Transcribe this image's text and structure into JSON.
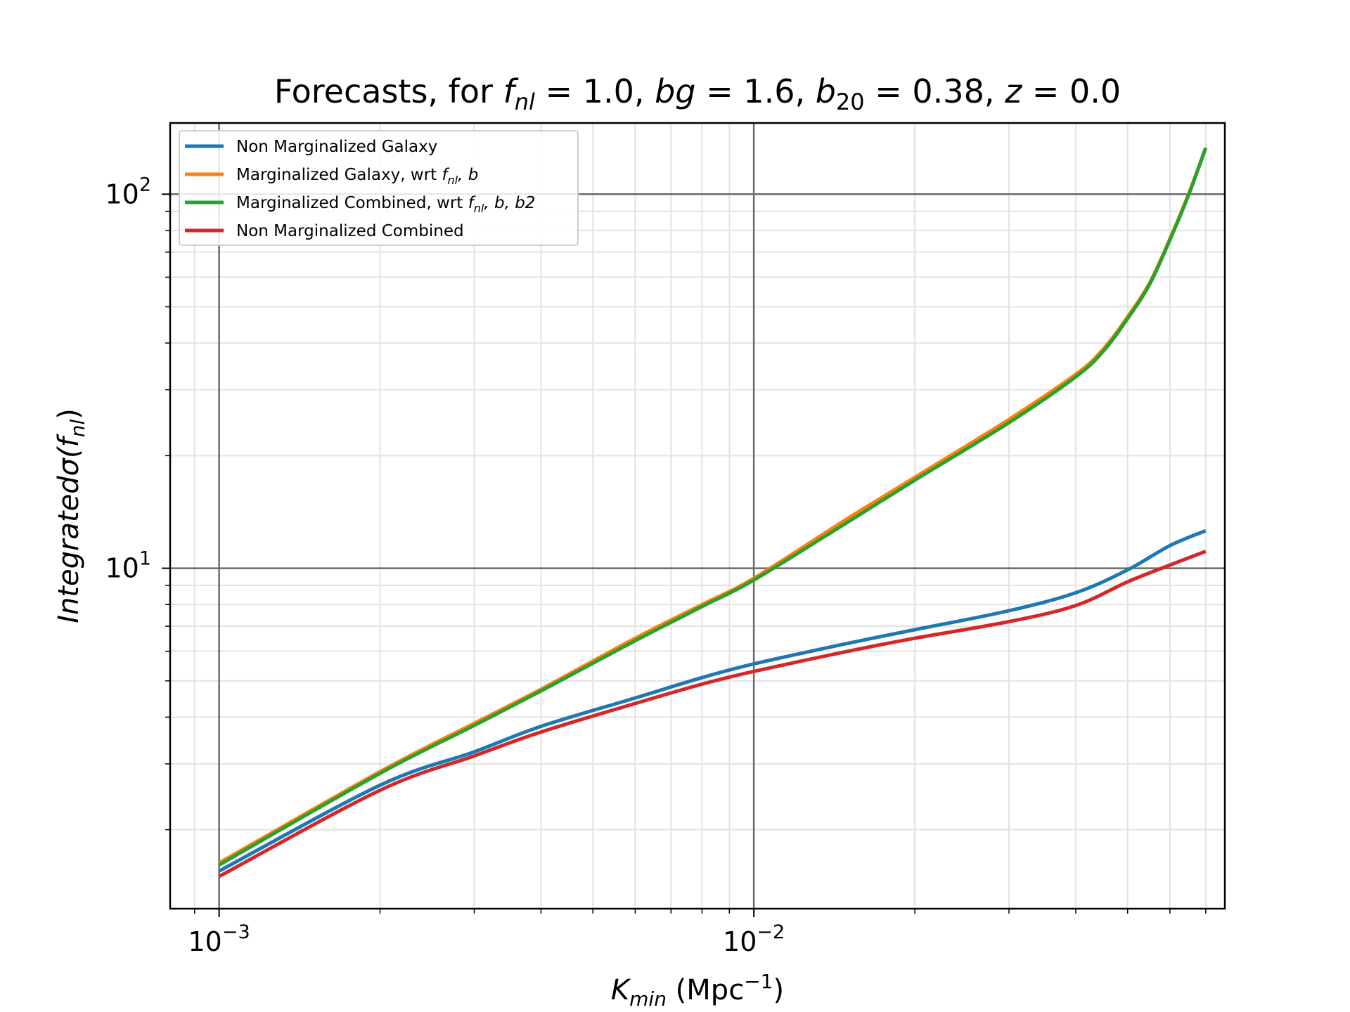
{
  "chart_data": {
    "type": "line",
    "title_parts": {
      "prefix": "Forecasts, for ",
      "fnl_sym": "f",
      "fnl_sub": "nl",
      "fnl_val": " = 1.0, ",
      "bg_sym": "bg",
      "bg_val": " = 1.6, ",
      "b20_sym": "b",
      "b20_sub": "20",
      "b20_val": " = 0.38, ",
      "z_sym": "z",
      "z_val": " = 0.0"
    },
    "xlabel_parts": {
      "sym": "K",
      "sub": "min",
      "unit_pre": " (Mpc",
      "unit_sup": "−1",
      "unit_post": ")"
    },
    "ylabel_parts": {
      "pre": "Integrated",
      "sigma": "σ(",
      "sym": "f",
      "sub": "nl",
      "post": ")"
    },
    "x_scale": "log",
    "y_scale": "log",
    "xlim": [
      0.00081,
      0.076
    ],
    "ylim": [
      1.23,
      155
    ],
    "x_ticks": [
      {
        "value": 0.001,
        "base": "10",
        "exp": "−3"
      },
      {
        "value": 0.01,
        "base": "10",
        "exp": "−2"
      }
    ],
    "y_ticks": [
      {
        "value": 10,
        "base": "10",
        "exp": "1"
      },
      {
        "value": 100,
        "base": "10",
        "exp": "2"
      }
    ],
    "grid": true,
    "legend_position": "upper-left",
    "legend": [
      {
        "color": "#1f77b4",
        "text": "Non Marginalized Galaxy",
        "sym": "",
        "sym_sub": "",
        "tail": ""
      },
      {
        "color": "#ff7f0e",
        "text": "Marginalized Galaxy, wrt ",
        "sym": "f",
        "sym_sub": "nl",
        "tail": ",  b"
      },
      {
        "color": "#2ca02c",
        "text": "Marginalized Combined, wrt ",
        "sym": "f",
        "sym_sub": "nl",
        "tail": ",  b,  b2"
      },
      {
        "color": "#d62728",
        "text": "Non Marginalized Combined",
        "sym": "",
        "sym_sub": "",
        "tail": ""
      }
    ],
    "series": [
      {
        "name": "Non Marginalized Galaxy",
        "color": "#1f77b4",
        "x": [
          0.001,
          0.002,
          0.003,
          0.004,
          0.006,
          0.008,
          0.01,
          0.015,
          0.02,
          0.03,
          0.04,
          0.05,
          0.06,
          0.07
        ],
        "y": [
          1.55,
          2.63,
          3.23,
          3.78,
          4.5,
          5.1,
          5.55,
          6.3,
          6.85,
          7.7,
          8.6,
          9.9,
          11.5,
          12.6
        ]
      },
      {
        "name": "Marginalized Galaxy, wrt fnl, b",
        "color": "#ff7f0e",
        "x": [
          0.001,
          0.002,
          0.003,
          0.004,
          0.006,
          0.008,
          0.01,
          0.015,
          0.02,
          0.03,
          0.04,
          0.045,
          0.05,
          0.055,
          0.06,
          0.065,
          0.07
        ],
        "y": [
          1.63,
          2.86,
          3.85,
          4.75,
          6.5,
          8.0,
          9.4,
          13.6,
          17.5,
          25.0,
          33.0,
          38.5,
          47.0,
          58.0,
          76.0,
          100.0,
          133.0
        ]
      },
      {
        "name": "Marginalized Combined, wrt fnl, b, b2",
        "color": "#2ca02c",
        "x": [
          0.001,
          0.002,
          0.003,
          0.004,
          0.006,
          0.008,
          0.01,
          0.015,
          0.02,
          0.03,
          0.04,
          0.045,
          0.05,
          0.055,
          0.06,
          0.065,
          0.07
        ],
        "y": [
          1.61,
          2.83,
          3.8,
          4.7,
          6.4,
          7.9,
          9.3,
          13.3,
          17.2,
          24.5,
          32.5,
          38.0,
          46.5,
          57.5,
          75.5,
          99.5,
          133.0
        ]
      },
      {
        "name": "Non Marginalized Combined",
        "color": "#d62728",
        "x": [
          0.001,
          0.002,
          0.003,
          0.004,
          0.006,
          0.008,
          0.01,
          0.015,
          0.02,
          0.03,
          0.04,
          0.05,
          0.06,
          0.07
        ],
        "y": [
          1.5,
          2.55,
          3.15,
          3.65,
          4.35,
          4.9,
          5.3,
          6.0,
          6.5,
          7.2,
          7.95,
          9.2,
          10.2,
          11.1
        ]
      }
    ]
  }
}
